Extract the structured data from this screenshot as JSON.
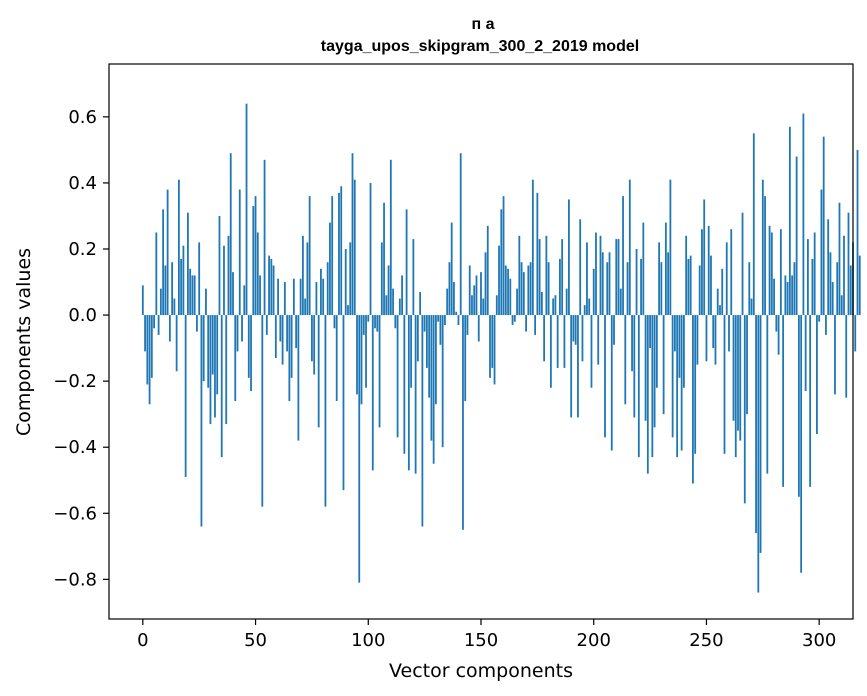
{
  "chart_data": {
    "type": "bar",
    "title_line1": "п а",
    "title_line2": "tayga_upos_skipgram_300_2_2019 model",
    "xlabel": "Vector components",
    "ylabel": "Components values",
    "xlim": [
      -15,
      315
    ],
    "ylim": [
      -0.92,
      0.76
    ],
    "xticks": [
      0,
      50,
      100,
      150,
      200,
      250,
      300
    ],
    "xtick_labels": [
      "0",
      "50",
      "100",
      "150",
      "200",
      "250",
      "300"
    ],
    "yticks": [
      -0.8,
      -0.6,
      -0.4,
      -0.2,
      0.0,
      0.2,
      0.4,
      0.6
    ],
    "ytick_labels": [
      "−0.8",
      "−0.6",
      "−0.4",
      "−0.2",
      "0.0",
      "0.2",
      "0.4",
      "0.6"
    ],
    "bar_color": "#1f77b4",
    "values": [
      0.09,
      -0.11,
      -0.21,
      -0.27,
      -0.19,
      -0.04,
      0.25,
      -0.06,
      0.08,
      0.32,
      0.15,
      0.38,
      -0.08,
      0.16,
      0.05,
      -0.17,
      0.41,
      0.17,
      0.21,
      -0.49,
      0.31,
      0.14,
      0.12,
      0.12,
      -0.05,
      0.22,
      -0.64,
      -0.2,
      0.08,
      -0.22,
      -0.33,
      -0.18,
      -0.31,
      -0.24,
      0.3,
      -0.43,
      0.21,
      -0.33,
      0.24,
      0.49,
      0.13,
      -0.26,
      -0.11,
      0.38,
      -0.08,
      0.09,
      0.64,
      -0.19,
      -0.23,
      0.33,
      0.36,
      0.25,
      0.12,
      -0.58,
      0.47,
      -0.06,
      0.18,
      0.17,
      0.15,
      -0.13,
      0.11,
      -0.08,
      -0.15,
      0.1,
      -0.11,
      -0.26,
      -0.19,
      0.11,
      -0.1,
      -0.38,
      0.11,
      0.24,
      0.05,
      0.22,
      0.36,
      -0.14,
      -0.18,
      0.1,
      -0.34,
      0.14,
      0.11,
      -0.58,
      0.16,
      0.28,
      0.36,
      -0.04,
      -0.26,
      0.37,
      0.39,
      -0.53,
      0.2,
      0.03,
      0.22,
      0.49,
      0.41,
      -0.24,
      -0.81,
      -0.27,
      -0.06,
      -0.22,
      -0.02,
      0.4,
      -0.47,
      -0.04,
      -0.05,
      -0.34,
      0.22,
      0.34,
      0.06,
      0.15,
      0.47,
      0.08,
      -0.04,
      -0.37,
      0.05,
      0.12,
      -0.42,
      0.32,
      -0.47,
      -0.22,
      0.23,
      -0.48,
      -0.14,
      0.07,
      -0.64,
      -0.05,
      -0.16,
      -0.25,
      -0.38,
      -0.45,
      -0.27,
      -0.02,
      -0.09,
      -0.4,
      -0.03,
      0.08,
      0.16,
      0.28,
      0.1,
      0.01,
      -0.03,
      0.49,
      -0.65,
      -0.26,
      -0.06,
      0.15,
      0.06,
      0.09,
      0.12,
      -0.08,
      0.13,
      0.05,
      0.19,
      0.27,
      -0.19,
      -0.16,
      -0.21,
      0.06,
      0.21,
      0.32,
      0.36,
      0.15,
      0.14,
      0.11,
      -0.03,
      -0.02,
      0.08,
      0.24,
      0.16,
      0.13,
      -0.05,
      0.15,
      0.16,
      0.41,
      -0.06,
      0.37,
      0.23,
      0.07,
      -0.14,
      0.24,
      0.16,
      -0.22,
      0.05,
      0.06,
      -0.16,
      0.17,
      0.23,
      -0.16,
      0.08,
      0.35,
      -0.31,
      -0.08,
      -0.09,
      -0.31,
      0.29,
      -0.14,
      0.03,
      0.22,
      0.05,
      -0.22,
      0.14,
      0.25,
      -0.15,
      0.24,
      0.19,
      -0.37,
      0.16,
      0.19,
      -0.41,
      -0.09,
      0.23,
      0.23,
      0.08,
      0.36,
      -0.27,
      0.16,
      0.41,
      -0.17,
      -0.31,
      0.2,
      -0.43,
      0.17,
      0.28,
      -0.32,
      -0.48,
      -0.1,
      -0.43,
      -0.34,
      -0.22,
      0.22,
      0.16,
      -0.3,
      0.28,
      0.19,
      0.41,
      -0.37,
      -0.11,
      -0.43,
      -0.19,
      -0.41,
      -0.22,
      0.24,
      0.17,
      0.18,
      -0.51,
      -0.42,
      -0.15,
      0.15,
      0.26,
      0.35,
      -0.14,
      0.27,
      0.18,
      -0.1,
      -0.15,
      0.08,
      0.03,
      0.14,
      -0.42,
      0.22,
      -0.11,
      0.26,
      -0.32,
      -0.43,
      -0.35,
      -0.38,
      0.31,
      -0.57,
      -0.3,
      0.16,
      0.05,
      0.55,
      -0.66,
      -0.84,
      -0.72,
      0.41,
      0.36,
      -0.48,
      0.27,
      0.25,
      0.11,
      -0.05,
      -0.12,
      0.26,
      -0.52,
      0.12,
      0.1,
      0.57,
      0.12,
      0.16,
      0.48,
      -0.55,
      -0.78,
      0.61,
      -0.23,
      0.23,
      -0.52,
      0.17,
      0.25,
      -0.36,
      -0.02,
      0.38,
      0.54,
      -0.06,
      0.29,
      0.19,
      0.1,
      -0.24,
      0.16,
      0.34,
      0.06,
      0.24,
      -0.25,
      0.31,
      0.15,
      0.22,
      -0.11,
      0.5,
      0.18
    ]
  }
}
